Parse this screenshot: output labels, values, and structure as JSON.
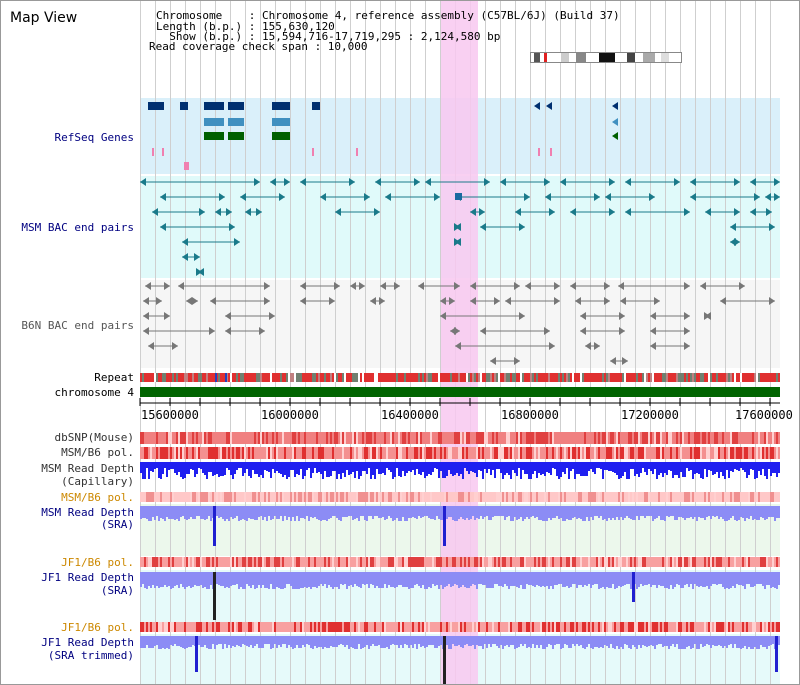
{
  "header": {
    "title": "Map View",
    "line1": "Chromosome    : Chromosome 4, reference assembly (C57BL/6J) (Build 37)",
    "line2": "Length (b.p.) : 155,630,120",
    "line3": "  Show (b.p.) : 15,594,716-17,719,295 : 2,124,580 bp",
    "line4": "Read coverage check span : 10,000"
  },
  "tracks": {
    "refseq": "RefSeq Genes",
    "msm_bac": "MSM BAC end pairs",
    "b6n_bac": "B6N BAC end pairs",
    "repeat": "Repeat",
    "chromosome": "chromosome 4",
    "dbsnp": "dbSNP(Mouse)",
    "msm_b6_pol_1": "MSM/B6 pol.",
    "msm_depth_cap_1": "MSM Read Depth",
    "msm_depth_cap_2": "(Capillary)",
    "msm_b6_pol_2": "MSM/B6 pol.",
    "msm_depth_sra_1": "MSM Read Depth",
    "msm_depth_sra_2": "(SRA)",
    "jf1_b6_pol_1": "JF1/B6 pol.",
    "jf1_depth_sra_1": "JF1 Read Depth",
    "jf1_depth_sra_2": "(SRA)",
    "jf1_b6_pol_2": "JF1/B6 pol.",
    "jf1_depth_trim_1": "JF1 Read Depth",
    "jf1_depth_trim_2": "(SRA trimmed)"
  },
  "ruler": {
    "ticks": [
      "15600000",
      "16000000",
      "16400000",
      "16800000",
      "17200000",
      "17600000"
    ]
  },
  "colors": {
    "navy": "#000080",
    "orange": "#cc8800",
    "refseq_bg": "#daf0fa",
    "msm_bg": "#e0fafa",
    "b6n_bg": "#f5f5f5",
    "highlight": "#f8c8f0",
    "chrom": "#006400",
    "depth": "#3c3cf0",
    "depth_light": "#8c8cf5"
  }
}
